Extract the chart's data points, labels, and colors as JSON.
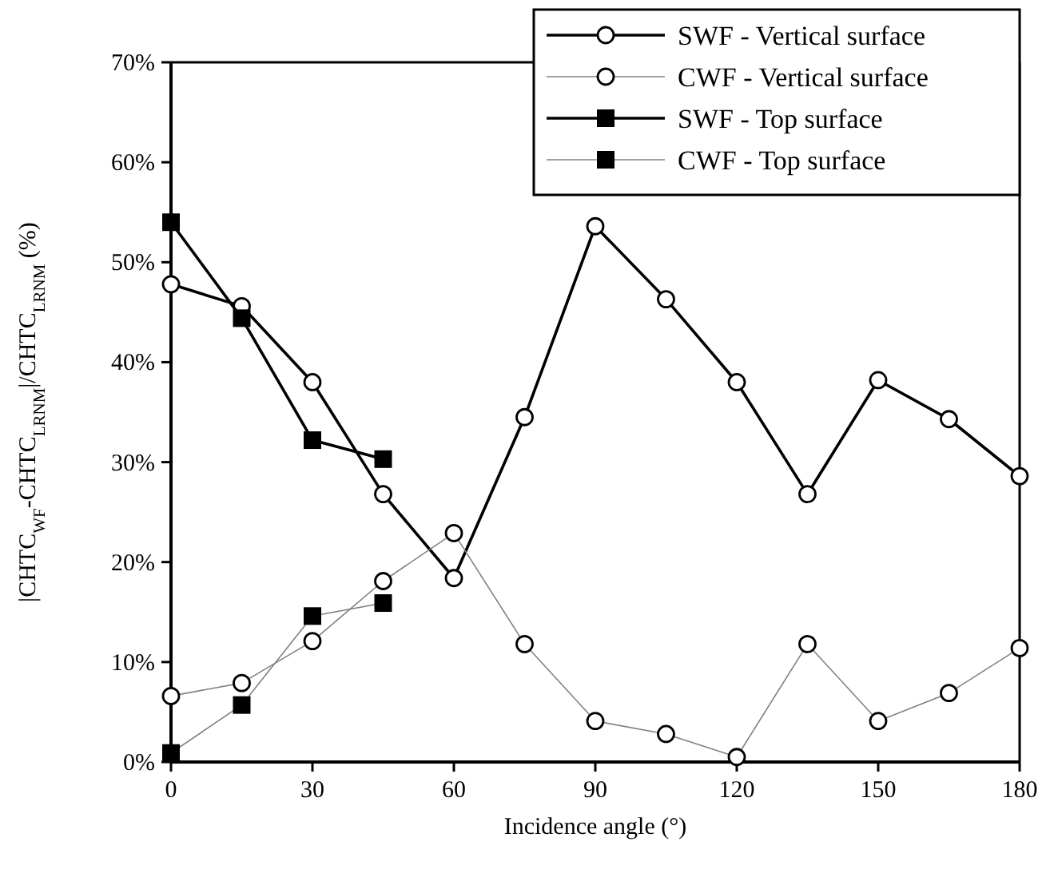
{
  "chart_data": {
    "type": "line",
    "xlabel": "Incidence angle (°)",
    "ylabel": "|CHTC$_{WF}$-CHTC$_{LRNM}$|/CHTC$_{LRNM}$ (%)",
    "xlim": [
      0,
      180
    ],
    "xticks": [
      0,
      30,
      60,
      90,
      120,
      150,
      180
    ],
    "ylim": [
      0,
      70
    ],
    "yticks": [
      {
        "value": 0,
        "label": "0%"
      },
      {
        "value": 10,
        "label": "10%"
      },
      {
        "value": 20,
        "label": "20%"
      },
      {
        "value": 30,
        "label": "30%"
      },
      {
        "value": 40,
        "label": "40%"
      },
      {
        "value": 50,
        "label": "50%"
      },
      {
        "value": 60,
        "label": "60%"
      },
      {
        "value": 70,
        "label": "70%"
      }
    ],
    "grid": false,
    "legend": "top right",
    "line_style": "solid",
    "series": [
      {
        "name": "SWF - Vertical surface",
        "color": "#000000",
        "marker": "circle",
        "x": [
          0,
          15,
          30,
          45,
          60,
          75,
          90,
          105,
          120,
          135,
          150,
          165,
          180
        ],
        "values": [
          47.8,
          45.6,
          38,
          26.8,
          18.4,
          34.5,
          53.6,
          46.3,
          38,
          26.8,
          38.2,
          34.3,
          28.6
        ]
      },
      {
        "name": "CWF - Vertical surface",
        "color": "#808080",
        "marker": "circle",
        "x": [
          0,
          15,
          30,
          45,
          60,
          75,
          90,
          105,
          120,
          135,
          150,
          165,
          180
        ],
        "values": [
          6.6,
          7.9,
          12.1,
          18.1,
          22.9,
          11.8,
          4.1,
          2.8,
          0.5,
          11.8,
          4.1,
          6.9,
          11.4
        ]
      },
      {
        "name": "SWF - Top surface",
        "color": "#000000",
        "marker": "square",
        "x": [
          0,
          15,
          30,
          45
        ],
        "values": [
          54,
          44.4,
          32.2,
          30.3
        ]
      },
      {
        "name": "CWF - Top surface",
        "color": "#808080",
        "marker": "square",
        "x": [
          0,
          15,
          30,
          45
        ],
        "values": [
          0.9,
          5.7,
          14.6,
          15.9
        ]
      }
    ]
  }
}
